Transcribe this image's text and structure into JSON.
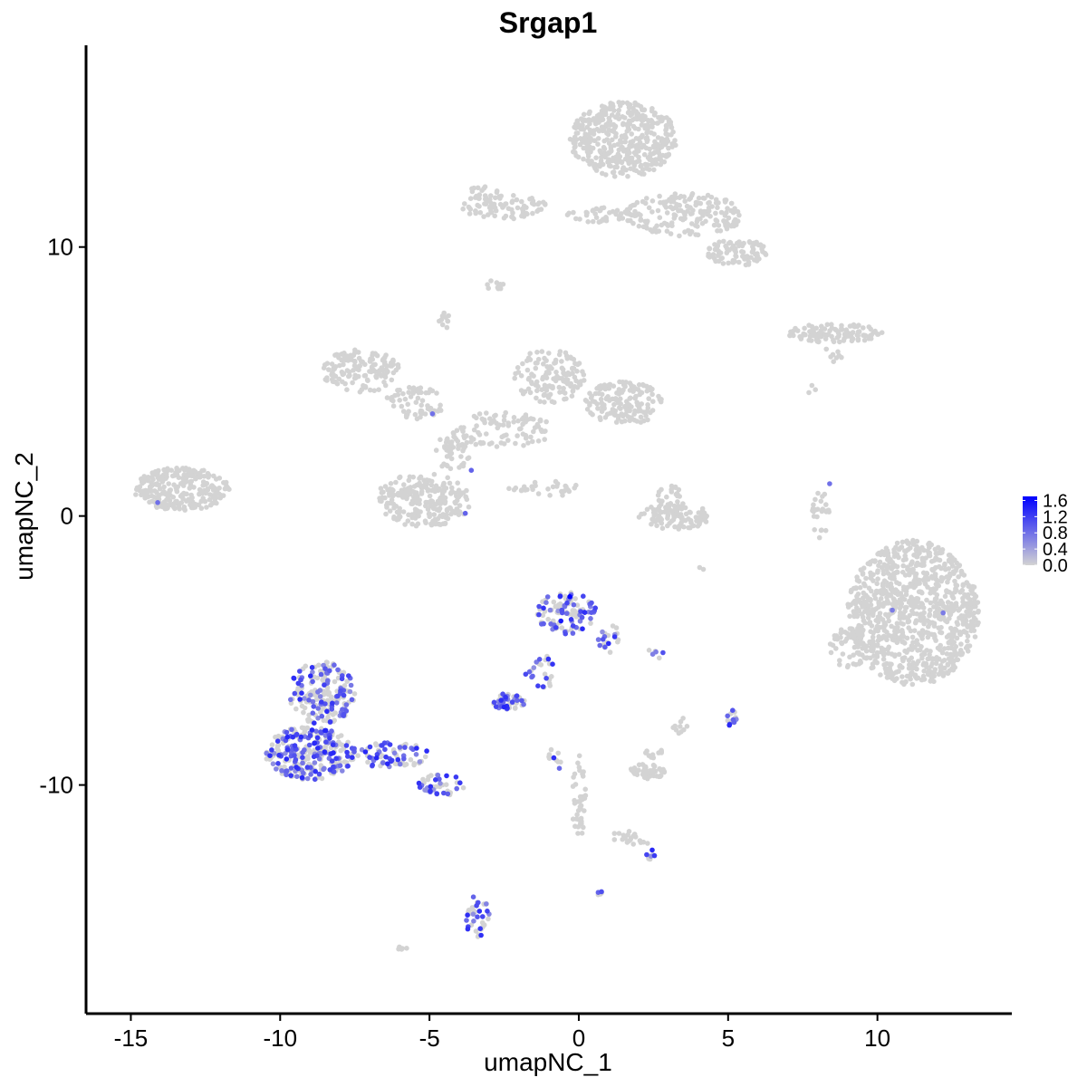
{
  "chart_data": {
    "type": "scatter",
    "title": "Srgap1",
    "xlabel": "umapNC_1",
    "ylabel": "umapNC_2",
    "xlim": [
      -16.5,
      14.5
    ],
    "ylim": [
      -18.5,
      17.5
    ],
    "x_ticks": [
      -15,
      -10,
      -5,
      0,
      5,
      10
    ],
    "x_tick_labels": [
      "-15",
      "-10",
      "-5",
      "0",
      "5",
      "10"
    ],
    "y_ticks": [
      -10,
      0,
      10
    ],
    "y_tick_labels": [
      "-10",
      "0",
      "10"
    ],
    "grid": false,
    "legend_position": "right",
    "colors": {
      "low": "#d3d3d3",
      "high": "#0000ff",
      "axis": "#000000"
    },
    "color_scale": {
      "min": 0.0,
      "max": 1.7,
      "breaks": [
        1.6,
        1.2,
        0.8,
        0.4,
        0.0
      ],
      "break_labels": [
        "1.6",
        "1.2",
        "0.8",
        "0.4",
        "0.0"
      ]
    },
    "clusters": [
      {
        "cx": 1.5,
        "cy": 14.0,
        "rx": 1.8,
        "ry": 1.4,
        "n": 420,
        "expr": 0
      },
      {
        "cx": 3.5,
        "cy": 11.2,
        "rx": 2.0,
        "ry": 0.8,
        "n": 180,
        "expr": 0
      },
      {
        "cx": 5.3,
        "cy": 9.8,
        "rx": 1.0,
        "ry": 0.5,
        "n": 90,
        "expr": 0
      },
      {
        "cx": -2.5,
        "cy": 11.5,
        "rx": 1.4,
        "ry": 0.5,
        "n": 80,
        "expr": 0
      },
      {
        "cx": 0.8,
        "cy": 11.2,
        "rx": 1.2,
        "ry": 0.3,
        "n": 40,
        "expr": 0
      },
      {
        "cx": -2.8,
        "cy": 8.6,
        "rx": 0.3,
        "ry": 0.2,
        "n": 10,
        "expr": 0
      },
      {
        "cx": -4.4,
        "cy": 7.3,
        "rx": 0.3,
        "ry": 0.3,
        "n": 10,
        "expr": 0
      },
      {
        "cx": 8.6,
        "cy": 6.8,
        "rx": 1.6,
        "ry": 0.35,
        "n": 110,
        "expr": 0
      },
      {
        "cx": 8.5,
        "cy": 6.0,
        "rx": 0.4,
        "ry": 0.3,
        "n": 8,
        "expr": 0
      },
      {
        "cx": -7.3,
        "cy": 5.4,
        "rx": 1.3,
        "ry": 0.8,
        "n": 140,
        "expr": 0
      },
      {
        "cx": -5.5,
        "cy": 4.2,
        "rx": 1.0,
        "ry": 0.6,
        "n": 60,
        "expr": 0
      },
      {
        "cx": -1.0,
        "cy": 5.2,
        "rx": 1.2,
        "ry": 1.0,
        "n": 130,
        "expr": 0
      },
      {
        "cx": 1.5,
        "cy": 4.2,
        "rx": 1.3,
        "ry": 0.8,
        "n": 150,
        "expr": 0
      },
      {
        "cx": -2.5,
        "cy": 3.2,
        "rx": 1.6,
        "ry": 0.7,
        "n": 90,
        "expr": 0
      },
      {
        "cx": -4.2,
        "cy": 2.4,
        "rx": 0.6,
        "ry": 0.8,
        "n": 50,
        "expr": 0
      },
      {
        "cx": -5.2,
        "cy": 0.6,
        "rx": 1.6,
        "ry": 1.0,
        "n": 230,
        "expr": 0
      },
      {
        "cx": -1.2,
        "cy": 1.0,
        "rx": 1.3,
        "ry": 0.3,
        "n": 30,
        "expr": 0
      },
      {
        "cx": -13.3,
        "cy": 1.0,
        "rx": 1.6,
        "ry": 0.8,
        "n": 260,
        "expr": 0
      },
      {
        "cx": 3.2,
        "cy": 0.0,
        "rx": 1.2,
        "ry": 0.5,
        "n": 100,
        "expr": 0
      },
      {
        "cx": 3.0,
        "cy": 0.8,
        "rx": 0.4,
        "ry": 0.5,
        "n": 20,
        "expr": 0
      },
      {
        "cx": 8.1,
        "cy": 0.0,
        "rx": 0.3,
        "ry": 0.9,
        "n": 25,
        "expr": 0
      },
      {
        "cx": 11.2,
        "cy": -3.6,
        "rx": 2.2,
        "ry": 2.7,
        "n": 950,
        "expr": 0
      },
      {
        "cx": 9.0,
        "cy": -5.0,
        "rx": 0.6,
        "ry": 1.0,
        "n": 50,
        "expr": 0
      },
      {
        "cx": -0.4,
        "cy": -3.6,
        "rx": 1.0,
        "ry": 0.8,
        "n": 110,
        "expr": 1
      },
      {
        "cx": 1.0,
        "cy": -4.5,
        "rx": 0.35,
        "ry": 0.6,
        "n": 20,
        "expr": 1
      },
      {
        "cx": -1.2,
        "cy": -5.8,
        "rx": 0.6,
        "ry": 0.6,
        "n": 25,
        "expr": 1
      },
      {
        "cx": -2.4,
        "cy": -6.9,
        "rx": 0.6,
        "ry": 0.3,
        "n": 50,
        "expr": 1
      },
      {
        "cx": -8.6,
        "cy": -6.6,
        "rx": 1.1,
        "ry": 1.2,
        "n": 180,
        "expr": 1
      },
      {
        "cx": -9.0,
        "cy": -8.8,
        "rx": 1.5,
        "ry": 1.0,
        "n": 300,
        "expr": 1
      },
      {
        "cx": -6.2,
        "cy": -8.9,
        "rx": 1.2,
        "ry": 0.5,
        "n": 70,
        "expr": 1
      },
      {
        "cx": -4.6,
        "cy": -10.0,
        "rx": 0.8,
        "ry": 0.4,
        "n": 40,
        "expr": 1
      },
      {
        "cx": 5.1,
        "cy": -7.5,
        "rx": 0.2,
        "ry": 0.3,
        "n": 12,
        "expr": 1
      },
      {
        "cx": 3.4,
        "cy": -7.8,
        "rx": 0.3,
        "ry": 0.3,
        "n": 10,
        "expr": 0
      },
      {
        "cx": 2.3,
        "cy": -9.5,
        "rx": 0.6,
        "ry": 0.3,
        "n": 50,
        "expr": 0
      },
      {
        "cx": 2.5,
        "cy": -8.8,
        "rx": 0.3,
        "ry": 0.2,
        "n": 10,
        "expr": 0
      },
      {
        "cx": 0.0,
        "cy": -10.5,
        "rx": 0.25,
        "ry": 1.6,
        "n": 40,
        "expr": 0
      },
      {
        "cx": -0.8,
        "cy": -9.0,
        "rx": 0.2,
        "ry": 0.6,
        "n": 10,
        "expr": 1
      },
      {
        "cx": 1.6,
        "cy": -12.0,
        "rx": 0.9,
        "ry": 0.3,
        "n": 20,
        "expr": 0
      },
      {
        "cx": 2.4,
        "cy": -12.6,
        "rx": 0.2,
        "ry": 0.2,
        "n": 8,
        "expr": 1
      },
      {
        "cx": -3.4,
        "cy": -14.9,
        "rx": 0.4,
        "ry": 0.8,
        "n": 35,
        "expr": 1
      },
      {
        "cx": 0.7,
        "cy": -14.0,
        "rx": 0.1,
        "ry": 0.1,
        "n": 5,
        "expr": 1
      },
      {
        "cx": -5.9,
        "cy": -16.1,
        "rx": 0.2,
        "ry": 0.1,
        "n": 6,
        "expr": 0
      },
      {
        "cx": 2.6,
        "cy": -5.1,
        "rx": 0.5,
        "ry": 0.2,
        "n": 6,
        "expr": 1
      },
      {
        "cx": -3.2,
        "cy": 12.0,
        "rx": 0.5,
        "ry": 0.3,
        "n": 15,
        "expr": 0
      },
      {
        "cx": 7.8,
        "cy": 4.7,
        "rx": 0.2,
        "ry": 0.2,
        "n": 3,
        "expr": 0
      },
      {
        "cx": 4.1,
        "cy": -2.0,
        "rx": 0.1,
        "ry": 0.1,
        "n": 2,
        "expr": 0
      }
    ]
  }
}
